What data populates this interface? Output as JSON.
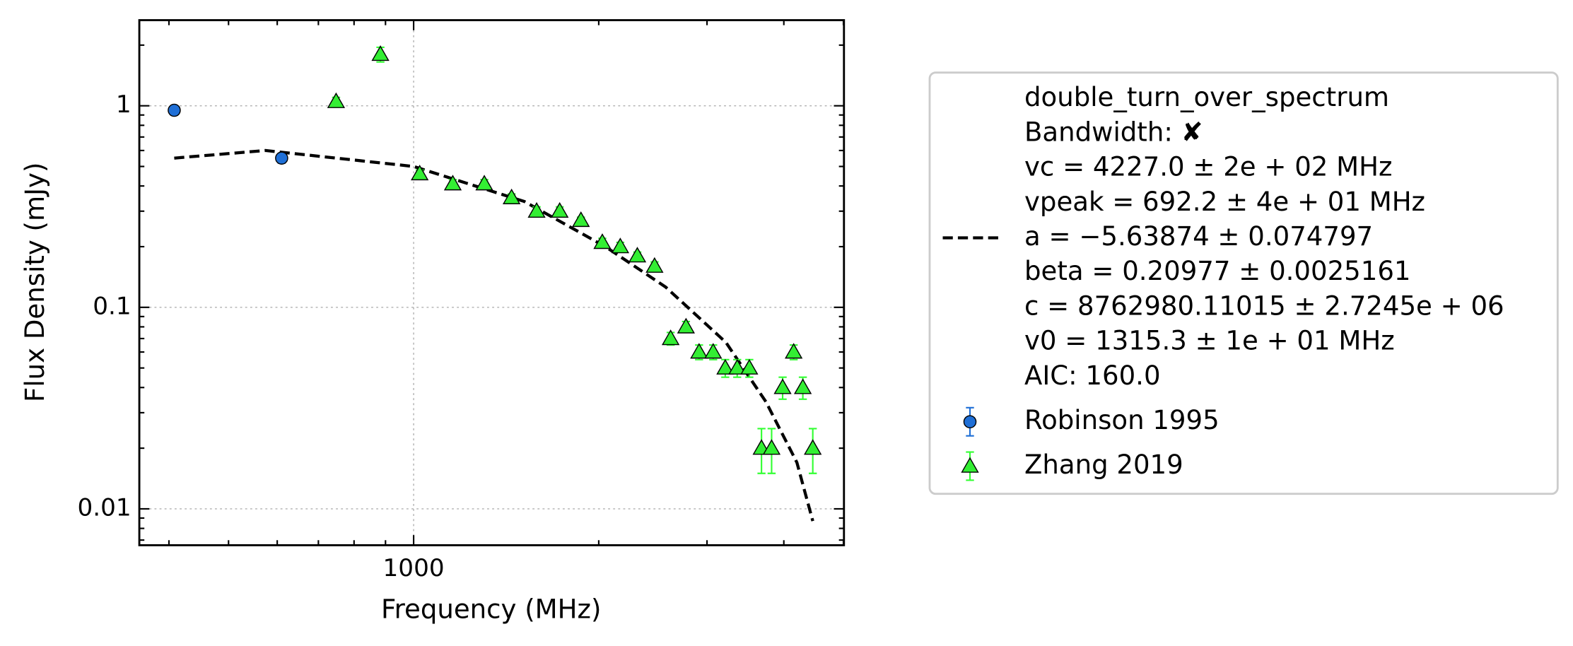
{
  "chart_data": {
    "type": "scatter",
    "xlabel": "Frequency (MHz)",
    "ylabel": "Flux Density (mJy)",
    "xscale": "log",
    "yscale": "log",
    "xlim": [
      358,
      5010
    ],
    "ylim": [
      0.0066,
      2.66
    ],
    "xticks": [
      1000
    ],
    "xminorticks": [
      400,
      500,
      600,
      700,
      800,
      900,
      2000,
      3000,
      4000,
      5000
    ],
    "yticks": [
      0.01,
      0.1,
      1
    ],
    "yminorticks": [
      0.007,
      0.008,
      0.009,
      0.02,
      0.03,
      0.04,
      0.05,
      0.06,
      0.07,
      0.08,
      0.09,
      0.2,
      0.3,
      0.4,
      0.5,
      0.6,
      0.7,
      0.8,
      0.9,
      2
    ],
    "grid": true,
    "legend": "outside right",
    "series": [
      {
        "name": [
          "double_turn_over_spectrum",
          "Bandwidth: ✘",
          "vc = 4227.0 ± 2e + 02 MHz",
          "vpeak = 692.2 ± 4e + 01 MHz",
          "a = −5.63874 ± 0.074797",
          "beta = 0.20977 ± 0.0025161",
          "c = 8762980.11015 ± 2.7245e + 06",
          "v0 = 1315.3 ± 1e + 01 MHz",
          "AIC: 160.0"
        ],
        "kind": "line",
        "style": "dashed",
        "color": "#000000",
        "x": [
          408,
          574,
          1000,
          1514,
          2050,
          2570,
          3220,
          3740,
          4200,
          4458
        ],
        "values": [
          0.55,
          0.6,
          0.5,
          0.335,
          0.2,
          0.126,
          0.067,
          0.034,
          0.017,
          0.0087
        ]
      },
      {
        "name": "Robinson 1995",
        "kind": "errorbar",
        "marker": "circle",
        "color": "#1f6fd6",
        "ecolor": "#1f6fd6",
        "x": [
          408,
          610
        ],
        "values": [
          0.95,
          0.55
        ],
        "errors": [
          0.05,
          0.03
        ]
      },
      {
        "name": "Zhang 2019",
        "kind": "errorbar",
        "marker": "triangle",
        "color": "#33ee33",
        "ecolor": "#33ff33",
        "x": [
          748,
          883,
          1023,
          1158,
          1303,
          1443,
          1585,
          1728,
          1871,
          2027,
          2168,
          2311,
          2465,
          2618,
          2773,
          2912,
          3070,
          3212,
          3359,
          3515,
          3679,
          3821,
          3982,
          4150,
          4295,
          4458
        ],
        "values": [
          1.05,
          1.8,
          0.46,
          0.41,
          0.41,
          0.35,
          0.3,
          0.3,
          0.27,
          0.21,
          0.2,
          0.18,
          0.16,
          0.07,
          0.08,
          0.06,
          0.06,
          0.05,
          0.05,
          0.05,
          0.02,
          0.02,
          0.04,
          0.06,
          0.04,
          0.02
        ],
        "errors": [
          0.05,
          0.15,
          0.02,
          0.02,
          0.02,
          0.015,
          0.015,
          0.015,
          0.01,
          0.01,
          0.01,
          0.008,
          0.008,
          0.005,
          0.005,
          0.005,
          0.005,
          0.005,
          0.005,
          0.005,
          0.005,
          0.005,
          0.005,
          0.005,
          0.005,
          0.005
        ]
      }
    ]
  }
}
